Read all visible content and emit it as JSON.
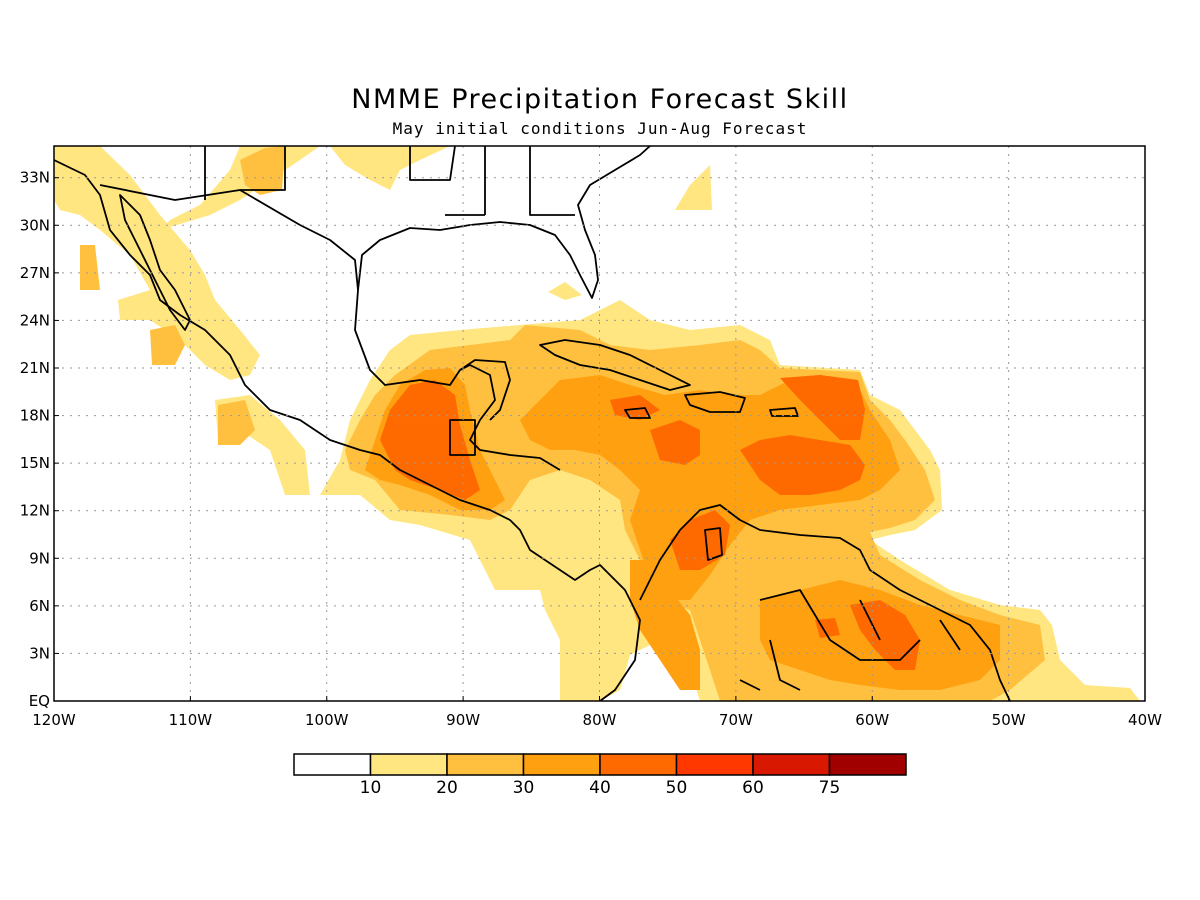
{
  "title": "NMME Precipitation Forecast Skill",
  "subtitle": "May initial conditions  Jun-Aug Forecast",
  "axes": {
    "lat_labels": [
      "33N",
      "30N",
      "27N",
      "24N",
      "21N",
      "18N",
      "15N",
      "12N",
      "9N",
      "6N",
      "3N",
      "EQ"
    ],
    "lon_labels": [
      "120W",
      "110W",
      "100W",
      "90W",
      "80W",
      "70W",
      "60W",
      "50W",
      "40W"
    ],
    "lat_range": [
      0,
      35
    ],
    "lon_range": [
      -120,
      -40
    ],
    "grid": "dotted"
  },
  "colorbar": {
    "levels": [
      "10",
      "20",
      "30",
      "40",
      "50",
      "60",
      "75"
    ],
    "colors": [
      "#ffffff",
      "#ffe680",
      "#ffc040",
      "#ffa010",
      "#ff6a00",
      "#ff3800",
      "#d81800",
      "#a00000"
    ]
  },
  "colors": {
    "land_outline": "#000000",
    "ocean": "#ffffff"
  }
}
